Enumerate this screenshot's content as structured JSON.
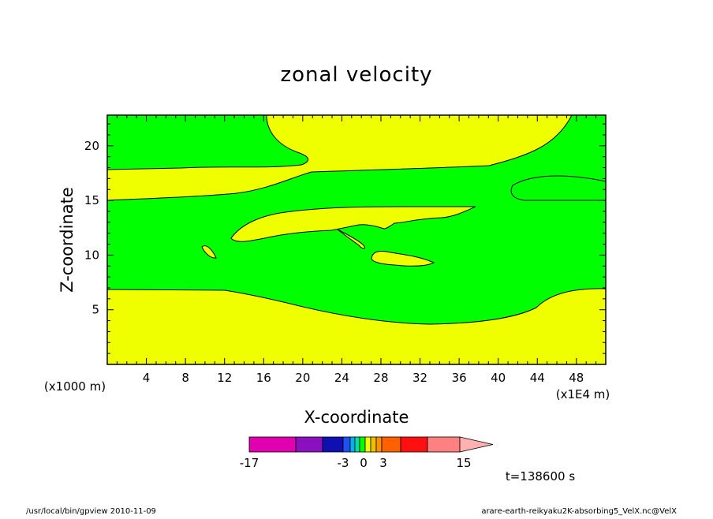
{
  "chart_data": {
    "type": "contour",
    "title": "zonal velocity",
    "xlabel": "X-coordinate",
    "ylabel": "Z-coordinate",
    "x_unit": "(x1E4 m)",
    "y_unit": "(x1000 m)",
    "xlim": [
      0,
      51
    ],
    "ylim": [
      0,
      22.8
    ],
    "x_ticks": [
      4,
      8,
      12,
      16,
      20,
      24,
      28,
      32,
      36,
      40,
      44,
      48
    ],
    "y_ticks": [
      5,
      10,
      15,
      20
    ],
    "contour_levels": [
      -17,
      -3,
      0,
      3,
      15
    ],
    "colorbar_labels": [
      "-17",
      "-3",
      "0",
      "3",
      "15"
    ],
    "colorbar_colors": [
      "#e000b0",
      "#8a10c0",
      "#1010b0",
      "#2050f0",
      "#00b0f0",
      "#00e0a0",
      "#00ff00",
      "#f0ff00",
      "#f0c000",
      "#ff9000",
      "#ff6000",
      "#ff1010",
      "#ff8080",
      "#ffb0b0"
    ],
    "fill_colors": {
      "negative_small": "#00ff00",
      "positive_small": "#f0ff00"
    },
    "regions": [
      {
        "name": "upper-green",
        "color": "#00ff00",
        "x": [
          0,
          21
        ],
        "z": [
          17.8,
          22.8
        ]
      },
      {
        "name": "upper-yellow",
        "color": "#f0ff00",
        "x": [
          16,
          48
        ],
        "z": [
          17.8,
          22.8
        ]
      },
      {
        "name": "middle-yellow-band",
        "color": "#f0ff00",
        "x": [
          0,
          51
        ],
        "z": [
          15.2,
          17.8
        ]
      },
      {
        "name": "central-green",
        "color": "#00ff00",
        "x": [
          0,
          51
        ],
        "z": [
          3.8,
          15.2
        ]
      },
      {
        "name": "bottom-yellow",
        "color": "#f0ff00",
        "x": [
          0,
          51
        ],
        "z": [
          0,
          7
        ]
      }
    ],
    "time": "t=138600 s"
  },
  "footer": {
    "left": "/usr/local/bin/gpview  2010-11-09",
    "right": "arare-earth-reikyaku2K-absorbing5_VelX.nc@VelX"
  }
}
